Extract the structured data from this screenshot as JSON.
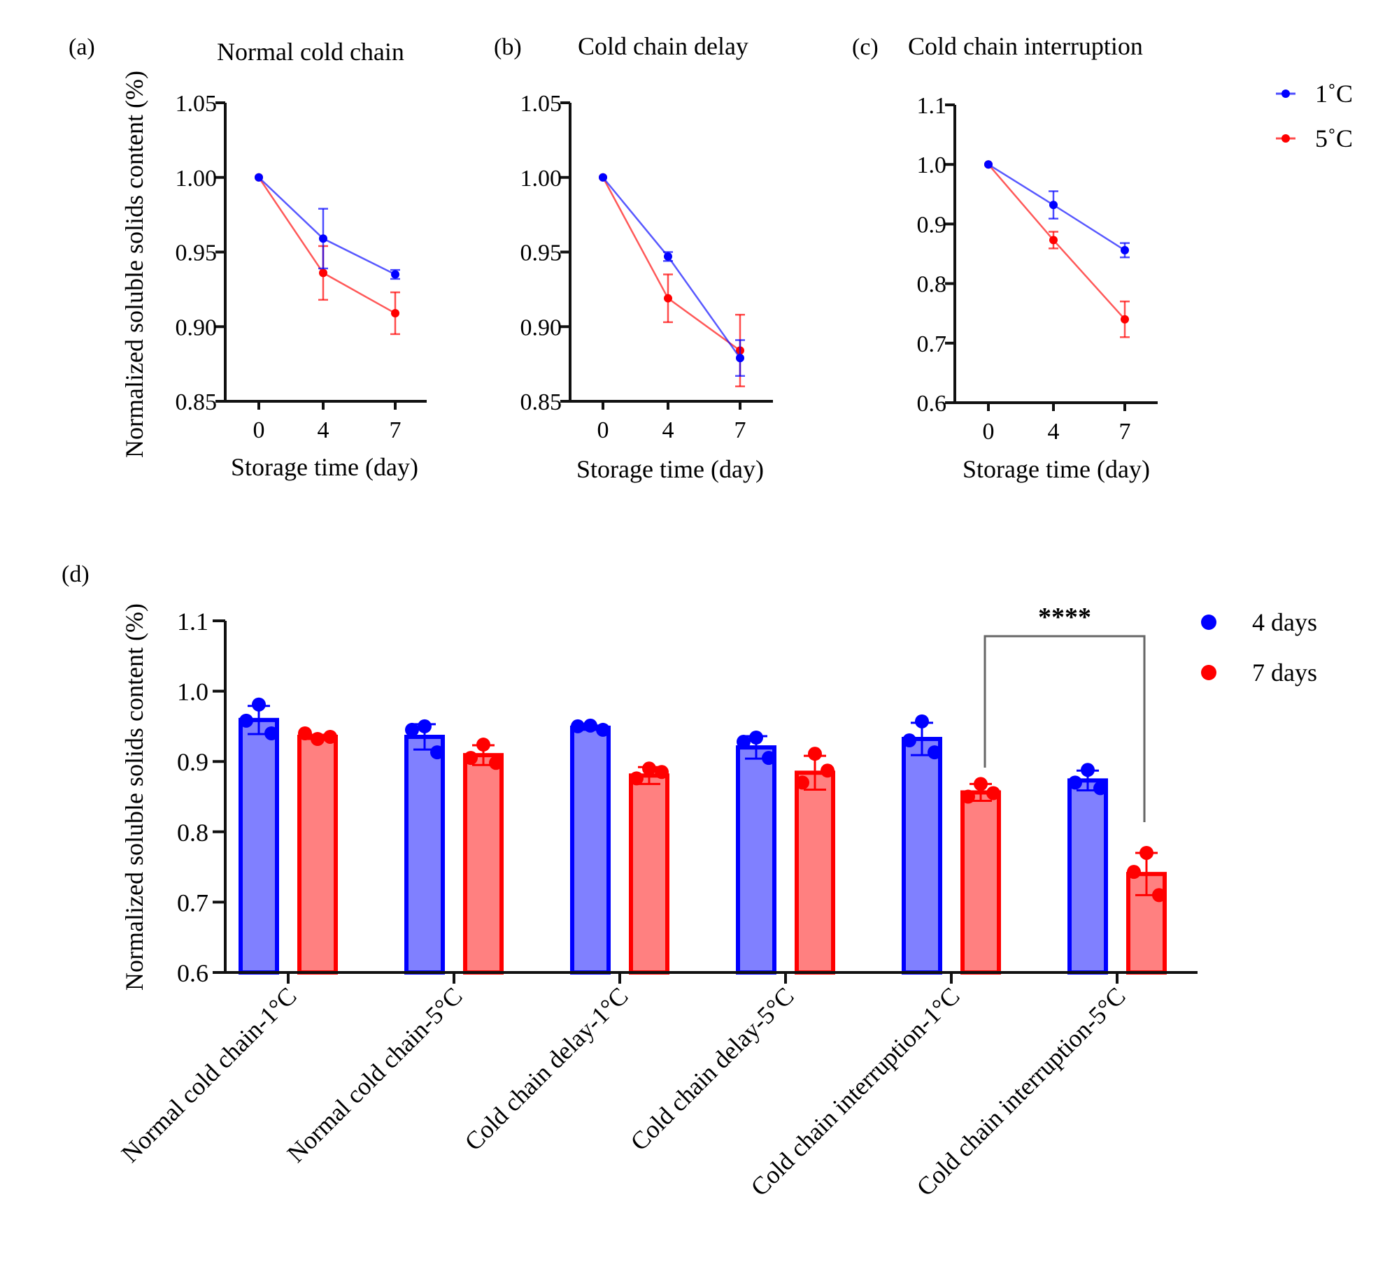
{
  "figure": {
    "legend_lines": [
      {
        "label": "1˚C",
        "color": "#0000ff"
      },
      {
        "label": "5˚C",
        "color": "#ff0000"
      }
    ],
    "legend_bars": [
      {
        "label": "4 days",
        "color": "#0000ff"
      },
      {
        "label": "7  days",
        "color": "#ff0000"
      }
    ]
  },
  "chart_data": [
    {
      "panel": "(a)",
      "type": "line",
      "title": "Normal cold chain",
      "xlabel": "Storage time (day)",
      "ylabel": "Normalized soluble solids content (%)",
      "x": [
        0,
        4,
        7
      ],
      "xticks": [
        "0",
        "4",
        "7"
      ],
      "ylim": [
        0.85,
        1.05
      ],
      "yticks": [
        "0.85",
        "0.90",
        "0.95",
        "1.00",
        "1.05"
      ],
      "series": [
        {
          "name": "1˚C",
          "color": "#0000ff",
          "values": [
            1.0,
            0.959,
            0.935
          ],
          "errors": [
            0.0,
            0.02,
            0.003
          ]
        },
        {
          "name": "5˚C",
          "color": "#ff0000",
          "values": [
            1.0,
            0.936,
            0.909
          ],
          "errors": [
            0.0,
            0.018,
            0.014
          ]
        }
      ]
    },
    {
      "panel": "(b)",
      "type": "line",
      "title": "Cold chain delay",
      "xlabel": "Storage time (day)",
      "ylabel": "",
      "x": [
        0,
        4,
        7
      ],
      "xticks": [
        "0",
        "4",
        "7"
      ],
      "ylim": [
        0.85,
        1.05
      ],
      "yticks": [
        "0.85",
        "0.90",
        "0.95",
        "1.00",
        "1.05"
      ],
      "series": [
        {
          "name": "1˚C",
          "color": "#0000ff",
          "values": [
            1.0,
            0.947,
            0.879
          ],
          "errors": [
            0.0,
            0.003,
            0.012
          ]
        },
        {
          "name": "5˚C",
          "color": "#ff0000",
          "values": [
            1.0,
            0.919,
            0.884
          ],
          "errors": [
            0.0,
            0.016,
            0.024
          ]
        }
      ]
    },
    {
      "panel": "(c)",
      "type": "line",
      "title": "Cold chain interruption",
      "xlabel": "Storage time (day)",
      "ylabel": "",
      "x": [
        0,
        4,
        7
      ],
      "xticks": [
        "0",
        "4",
        "7"
      ],
      "ylim": [
        0.6,
        1.1
      ],
      "yticks": [
        "0.6",
        "0.7",
        "0.8",
        "0.9",
        "1.0",
        "1.1"
      ],
      "series": [
        {
          "name": "1˚C",
          "color": "#0000ff",
          "values": [
            1.0,
            0.932,
            0.856
          ],
          "errors": [
            0.0,
            0.023,
            0.012
          ]
        },
        {
          "name": "5˚C",
          "color": "#ff0000",
          "values": [
            1.0,
            0.873,
            0.74
          ],
          "errors": [
            0.0,
            0.014,
            0.03
          ]
        }
      ]
    },
    {
      "panel": "(d)",
      "type": "bar",
      "title": "",
      "xlabel": "",
      "ylabel": "Normalized soluble solids content (%)",
      "ylim": [
        0.6,
        1.1
      ],
      "yticks": [
        "0.6",
        "0.7",
        "0.8",
        "0.9",
        "1.0",
        "1.1"
      ],
      "categories": [
        "Normal cold chain-1°C",
        "Normal cold chain-5°C",
        "Cold chain delay-1°C",
        "Cold chain delay-5°C",
        "Cold chain interruption-1°C",
        "Cold chain interruption-5°C"
      ],
      "series": [
        {
          "name": "4 days",
          "color": "#0000ff",
          "fill": "#8080ff",
          "values": [
            0.959,
            0.935,
            0.948,
            0.92,
            0.932,
            0.873
          ],
          "errors": [
            0.02,
            0.018,
            0.003,
            0.016,
            0.023,
            0.014
          ],
          "points": [
            [
              0.981,
              0.958,
              0.94
            ],
            [
              0.95,
              0.945,
              0.913
            ],
            [
              0.951,
              0.95,
              0.945
            ],
            [
              0.934,
              0.928,
              0.905
            ],
            [
              0.957,
              0.93,
              0.913
            ],
            [
              0.888,
              0.87,
              0.862
            ]
          ]
        },
        {
          "name": "7  days",
          "color": "#ff0000",
          "fill": "#ff8080",
          "values": [
            0.935,
            0.909,
            0.88,
            0.884,
            0.856,
            0.74
          ],
          "errors": [
            0.003,
            0.014,
            0.012,
            0.024,
            0.012,
            0.03
          ],
          "points": [
            [
              0.932,
              0.94,
              0.935
            ],
            [
              0.924,
              0.905,
              0.898
            ],
            [
              0.89,
              0.876,
              0.885
            ],
            [
              0.911,
              0.87,
              0.887
            ],
            [
              0.868,
              0.85,
              0.855
            ],
            [
              0.77,
              0.743,
              0.71
            ]
          ]
        }
      ],
      "annotations": [
        {
          "text": "****",
          "between": [
            "Cold chain interruption-1°C / 7  days",
            "Cold chain interruption-5°C / 7  days"
          ]
        }
      ]
    }
  ]
}
